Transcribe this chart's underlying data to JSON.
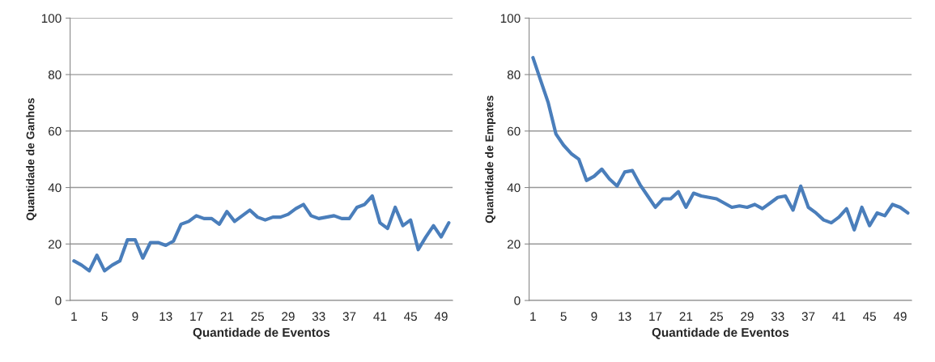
{
  "chart_data": [
    {
      "type": "line",
      "xlabel": "Quantidade de Eventos",
      "ylabel": "Quantidade de Ganhos",
      "categories": [
        "1",
        null,
        null,
        null,
        "5",
        null,
        null,
        null,
        "9",
        null,
        null,
        null,
        "13",
        null,
        null,
        null,
        "17",
        null,
        null,
        null,
        "21",
        null,
        null,
        null,
        "25",
        null,
        null,
        null,
        "29",
        null,
        null,
        null,
        "33",
        null,
        null,
        null,
        "37",
        null,
        null,
        null,
        "41",
        null,
        null,
        null,
        "45",
        null,
        null,
        null,
        "49",
        null
      ],
      "series": [
        {
          "color": "#4a7ebb",
          "values": [
            14,
            12.5,
            10.5,
            16,
            10.5,
            12.5,
            14,
            21.5,
            21.5,
            15,
            20.5,
            20.5,
            19.5,
            21,
            27,
            28,
            30,
            29,
            29,
            27,
            31.5,
            28,
            30,
            32,
            29.5,
            28.5,
            29.5,
            29.5,
            30.5,
            32.5,
            34,
            30,
            29,
            29.5,
            30,
            29,
            29,
            33,
            34,
            37,
            27.5,
            25.5,
            33,
            26.5,
            28.5,
            18,
            22.5,
            26.5,
            22.5,
            27.5
          ]
        }
      ],
      "ylim": [
        0,
        100
      ],
      "yticks": [
        0,
        20,
        40,
        60,
        80,
        100
      ],
      "grid": "y"
    },
    {
      "type": "line",
      "xlabel": "Quantidade de Eventos",
      "ylabel": "Quantidade de Empates",
      "categories": [
        "1",
        null,
        null,
        null,
        "5",
        null,
        null,
        null,
        "9",
        null,
        null,
        null,
        "13",
        null,
        null,
        null,
        "17",
        null,
        null,
        null,
        "21",
        null,
        null,
        null,
        "25",
        null,
        null,
        null,
        "29",
        null,
        null,
        null,
        "33",
        null,
        null,
        null,
        "37",
        null,
        null,
        null,
        "41",
        null,
        null,
        null,
        "45",
        null,
        null,
        null,
        "49",
        null
      ],
      "series": [
        {
          "color": "#4a7ebb",
          "values": [
            86,
            78,
            70,
            59,
            55,
            52,
            50,
            42.5,
            44,
            46.5,
            43,
            40.5,
            45.5,
            46,
            41,
            37,
            33,
            36,
            36,
            38.5,
            33,
            38,
            37,
            36.5,
            36,
            34.5,
            33,
            33.5,
            33,
            34,
            32.5,
            34.5,
            36.5,
            37,
            32,
            40.5,
            33,
            31,
            28.5,
            27.5,
            29.5,
            32.5,
            25,
            33,
            26.5,
            31,
            30,
            34,
            33,
            31
          ]
        }
      ],
      "ylim": [
        0,
        100
      ],
      "yticks": [
        0,
        20,
        40,
        60,
        80,
        100
      ],
      "grid": "y"
    }
  ]
}
